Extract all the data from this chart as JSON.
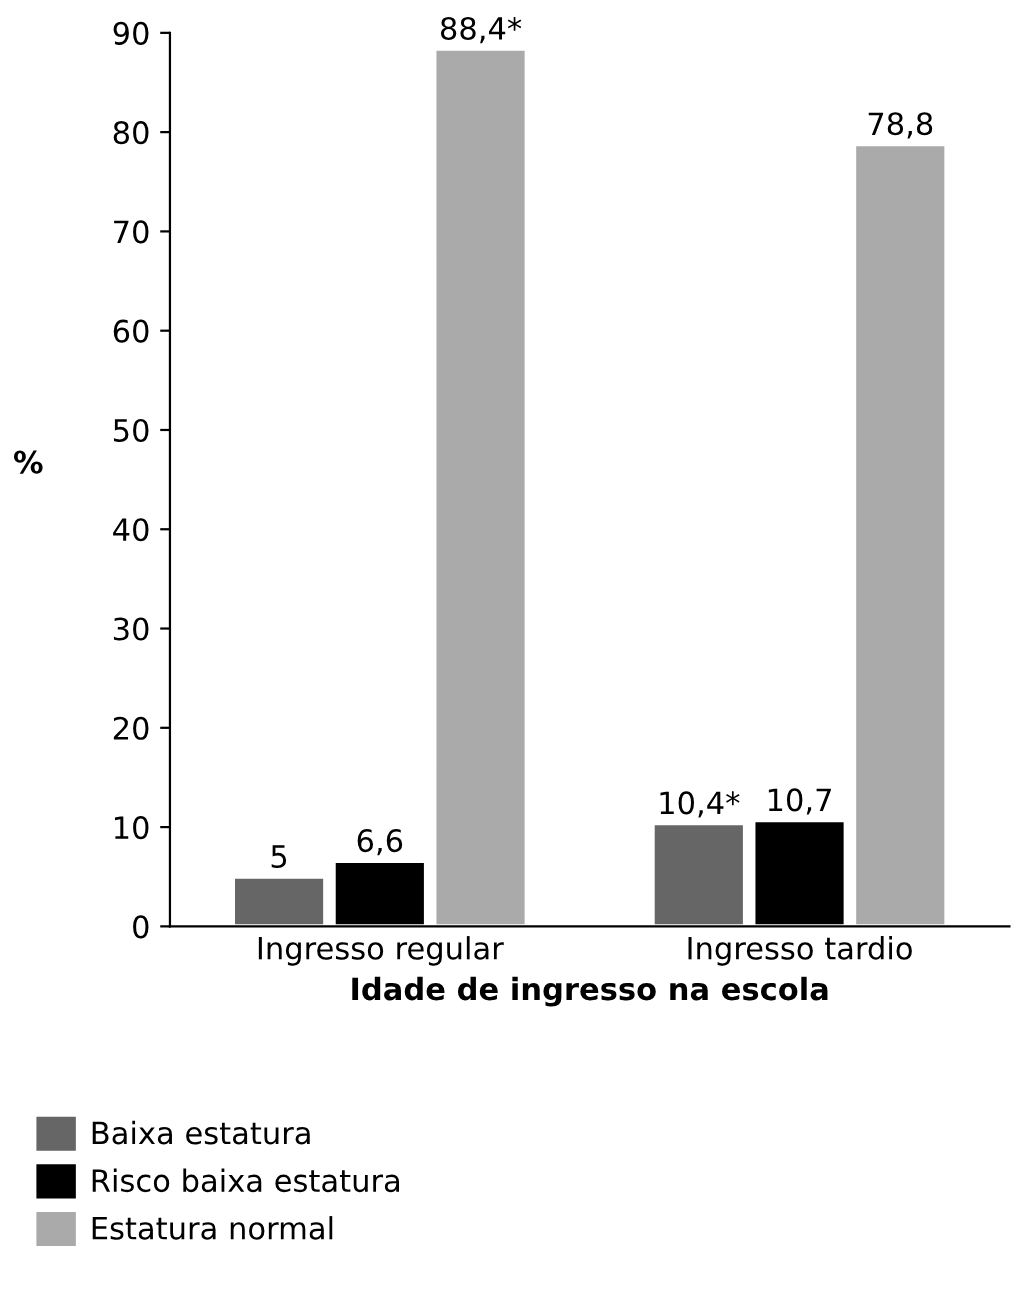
{
  "chart_data": {
    "type": "bar",
    "xlabel": "Idade de ingresso na escola",
    "ylabel": "%",
    "categories": [
      "Ingresso regular",
      "Ingresso tardio"
    ],
    "series": [
      {
        "name": "Baixa estatura",
        "color": "#666666",
        "values": [
          5,
          10.4
        ],
        "value_labels": [
          "5",
          "10,4*"
        ]
      },
      {
        "name": "Risco baixa estatura",
        "color": "#000000",
        "values": [
          6.6,
          10.7
        ],
        "value_labels": [
          "6,6",
          "10,7"
        ]
      },
      {
        "name": "Estatura normal",
        "color": "#aaaaaa",
        "values": [
          88.4,
          78.8
        ],
        "value_labels": [
          "88,4*",
          "78,8"
        ]
      }
    ],
    "ylim": [
      0,
      90
    ],
    "yticks": [
      0,
      10,
      20,
      30,
      40,
      50,
      60,
      70,
      80,
      90
    ],
    "grid": false,
    "legend": "bottom left"
  }
}
